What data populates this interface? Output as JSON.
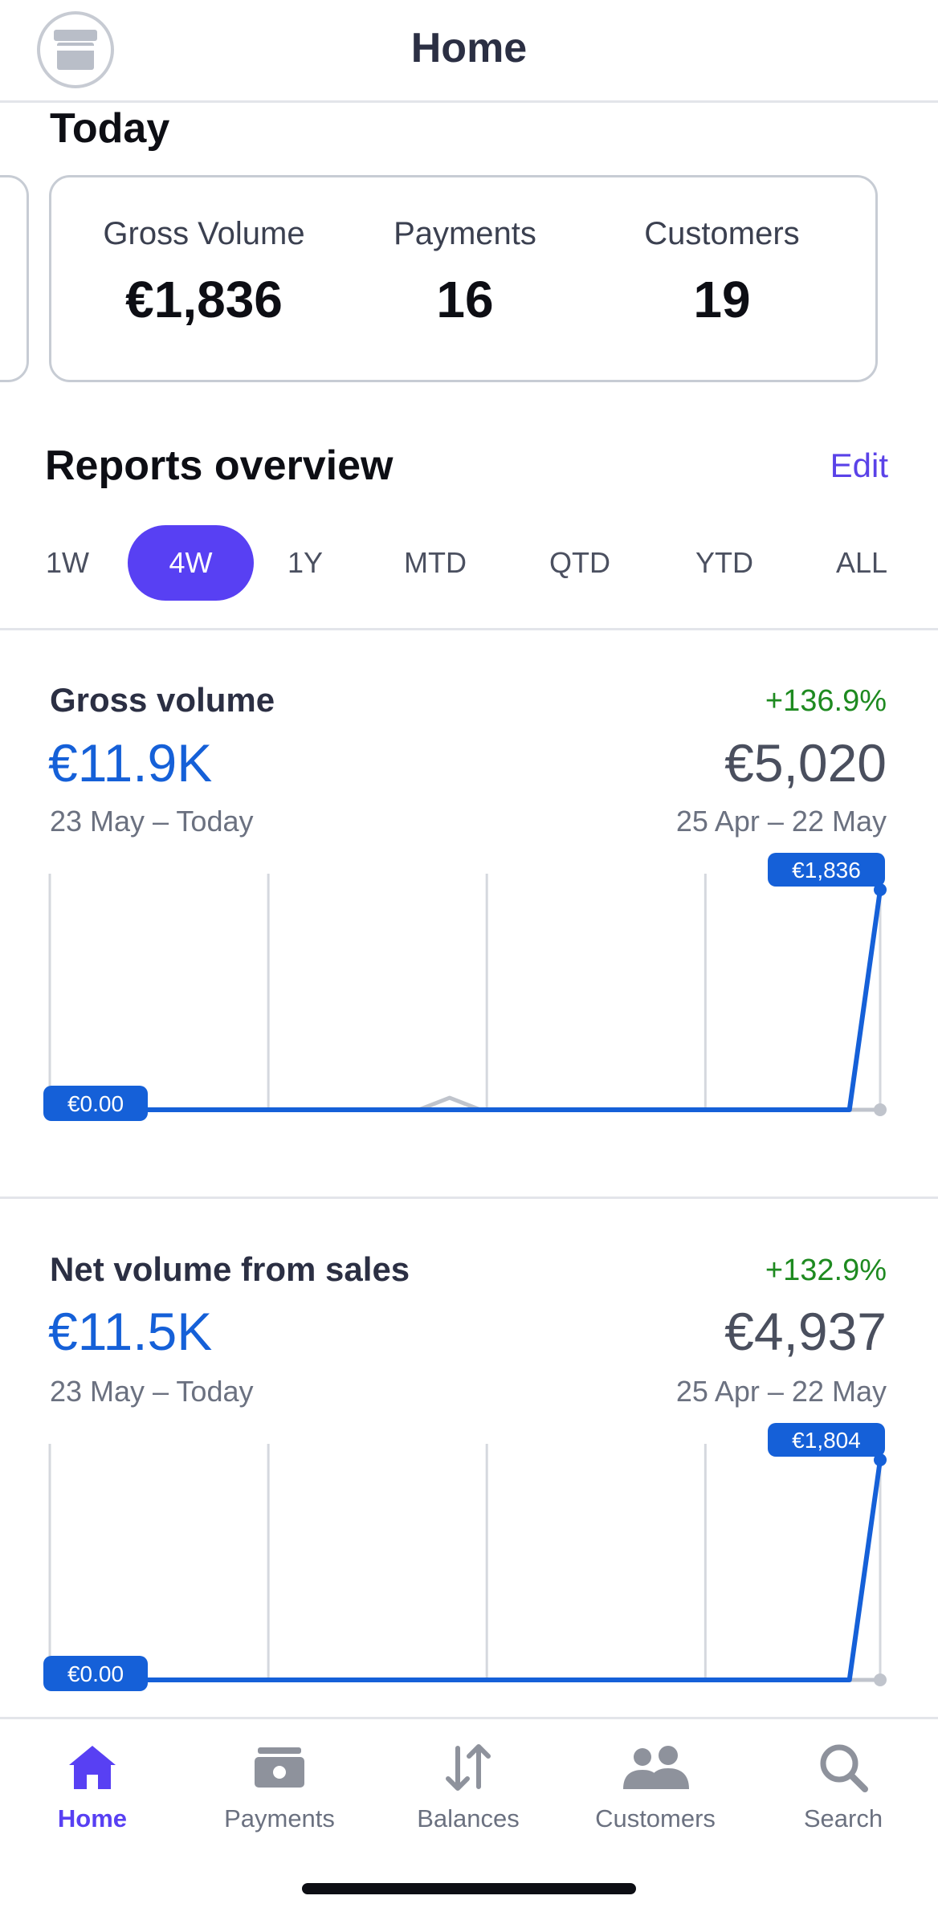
{
  "header": {
    "title": "Home",
    "store_icon": "store-icon"
  },
  "today": {
    "title": "Today",
    "metrics": [
      {
        "label": "Gross Volume",
        "value": "€1,836"
      },
      {
        "label": "Payments",
        "value": "16"
      },
      {
        "label": "Customers",
        "value": "19"
      }
    ]
  },
  "reports": {
    "title": "Reports overview",
    "edit_label": "Edit",
    "ranges": [
      "1W",
      "4W",
      "1Y",
      "MTD",
      "QTD",
      "YTD",
      "ALL"
    ],
    "selected_range": "4W"
  },
  "colors": {
    "accent": "#5840f3",
    "primary_series": "#1560d8",
    "comparison_series": "#c0c4cc",
    "positive": "#1e8a20"
  },
  "cards": [
    {
      "title": "Gross volume",
      "value": "€11.9K",
      "change": "+136.9%",
      "previous_value": "€5,020",
      "range": "23 May – Today",
      "previous_range": "25 Apr – 22 May",
      "start_label": "€0.00",
      "end_label": "€1,836"
    },
    {
      "title": "Net volume from sales",
      "value": "€11.5K",
      "change": "+132.9%",
      "previous_value": "€4,937",
      "range": "23 May – Today",
      "previous_range": "25 Apr – 22 May",
      "start_label": "€0.00",
      "end_label": "€1,804"
    }
  ],
  "chart_data": [
    {
      "type": "line",
      "x": [
        1,
        2,
        3,
        4,
        5,
        6,
        7,
        8,
        9,
        10,
        11,
        12,
        13,
        14,
        15,
        16,
        17,
        18,
        19,
        20,
        21,
        22,
        23,
        24,
        25,
        26,
        27,
        28
      ],
      "series": [
        {
          "values": [
            0,
            0,
            0,
            0,
            0,
            0,
            0,
            0,
            0,
            0,
            0,
            0,
            0,
            100,
            0,
            0,
            0,
            0,
            0,
            0,
            0,
            0,
            0,
            0,
            0,
            0,
            0,
            0
          ]
        },
        {
          "values": [
            0,
            0,
            0,
            0,
            0,
            0,
            0,
            0,
            0,
            0,
            0,
            0,
            0,
            0,
            0,
            0,
            0,
            0,
            0,
            0,
            0,
            0,
            0,
            0,
            0,
            0,
            0,
            1836
          ]
        }
      ],
      "ylim": [
        0,
        1836
      ]
    },
    {
      "type": "line",
      "x": [
        1,
        2,
        3,
        4,
        5,
        6,
        7,
        8,
        9,
        10,
        11,
        12,
        13,
        14,
        15,
        16,
        17,
        18,
        19,
        20,
        21,
        22,
        23,
        24,
        25,
        26,
        27,
        28
      ],
      "series": [
        {
          "values": [
            0,
            0,
            0,
            0,
            0,
            0,
            0,
            0,
            0,
            0,
            0,
            0,
            0,
            0,
            0,
            0,
            0,
            0,
            0,
            0,
            0,
            0,
            0,
            0,
            0,
            0,
            0,
            0
          ]
        },
        {
          "values": [
            0,
            0,
            0,
            0,
            0,
            0,
            0,
            0,
            0,
            0,
            0,
            0,
            0,
            0,
            0,
            0,
            0,
            0,
            0,
            0,
            0,
            0,
            0,
            0,
            0,
            0,
            0,
            1804
          ]
        }
      ],
      "ylim": [
        0,
        1804
      ]
    }
  ],
  "tabs": [
    {
      "label": "Home",
      "icon": "home-icon"
    },
    {
      "label": "Payments",
      "icon": "wallet-icon"
    },
    {
      "label": "Balances",
      "icon": "arrows-icon"
    },
    {
      "label": "Customers",
      "icon": "people-icon"
    },
    {
      "label": "Search",
      "icon": "search-icon"
    }
  ]
}
